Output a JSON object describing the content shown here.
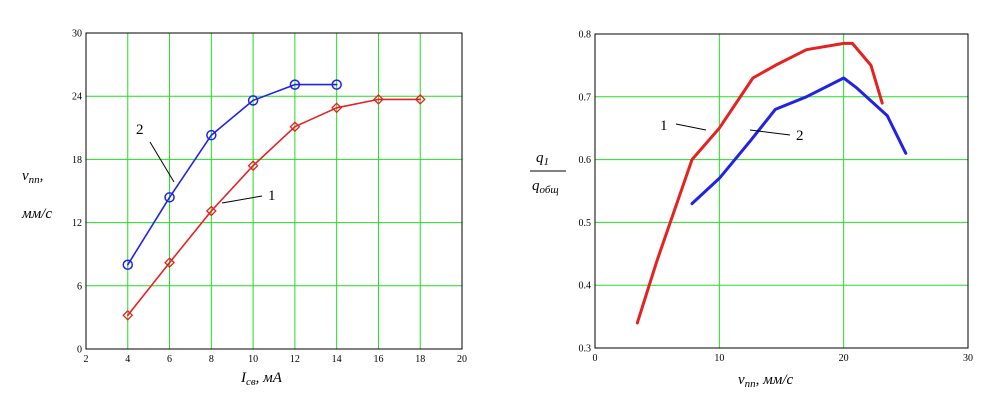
{
  "chart_data": [
    {
      "type": "line",
      "xlim": [
        2,
        20
      ],
      "ylim": [
        0,
        30
      ],
      "x_ticks": [
        "2",
        "4",
        "6",
        "8",
        "10",
        "12",
        "14",
        "16",
        "18",
        "20"
      ],
      "y_ticks": [
        "0",
        "6",
        "12",
        "18",
        "24",
        "30"
      ],
      "grid": true,
      "xlabel": {
        "main": "I",
        "sub": "св",
        "unit": ", мА"
      },
      "ylabel": {
        "main": "v",
        "sub": "пп",
        "comma": ",",
        "unit": "мм/с"
      },
      "series": [
        {
          "label": "1",
          "color": "#e52222",
          "marker": "diamond",
          "x": [
            4,
            6,
            8,
            10,
            12,
            14,
            16,
            18
          ],
          "y": [
            3.2,
            8.2,
            13.1,
            17.4,
            21.1,
            22.9,
            23.7,
            23.7
          ]
        },
        {
          "label": "2",
          "color": "#2222e5",
          "marker": "circle",
          "x": [
            4,
            6,
            8,
            10,
            12,
            14
          ],
          "y": [
            8.0,
            14.4,
            20.3,
            23.6,
            25.1,
            25.1
          ]
        }
      ]
    },
    {
      "type": "line",
      "xlim": [
        0,
        30
      ],
      "ylim": [
        0.3,
        0.8
      ],
      "x_ticks": [
        "0",
        "10",
        "20",
        "30"
      ],
      "y_ticks": [
        "0.3",
        "0.4",
        "0.5",
        "0.6",
        "0.7",
        "0.8"
      ],
      "grid": true,
      "xlabel": {
        "main": "v",
        "sub": "пп",
        "unit": ", мм/с"
      },
      "ylabel": {
        "num_main": "q",
        "num_sub": "1",
        "den_main": "q",
        "den_sub": "общ"
      },
      "series": [
        {
          "label": "1",
          "color": "#e52222",
          "x": [
            3.4,
            5.0,
            7.8,
            10.0,
            12.7,
            14.5,
            17.0,
            20.0,
            20.7,
            22.2,
            23.1
          ],
          "y": [
            0.34,
            0.44,
            0.6,
            0.65,
            0.73,
            0.75,
            0.775,
            0.785,
            0.785,
            0.75,
            0.69
          ]
        },
        {
          "label": "2",
          "color": "#2222e5",
          "x": [
            7.8,
            10.0,
            12.5,
            14.5,
            17.0,
            20.0,
            21.0,
            23.5,
            25.0
          ],
          "y": [
            0.53,
            0.57,
            0.63,
            0.68,
            0.7,
            0.73,
            0.715,
            0.67,
            0.61
          ]
        }
      ]
    }
  ]
}
